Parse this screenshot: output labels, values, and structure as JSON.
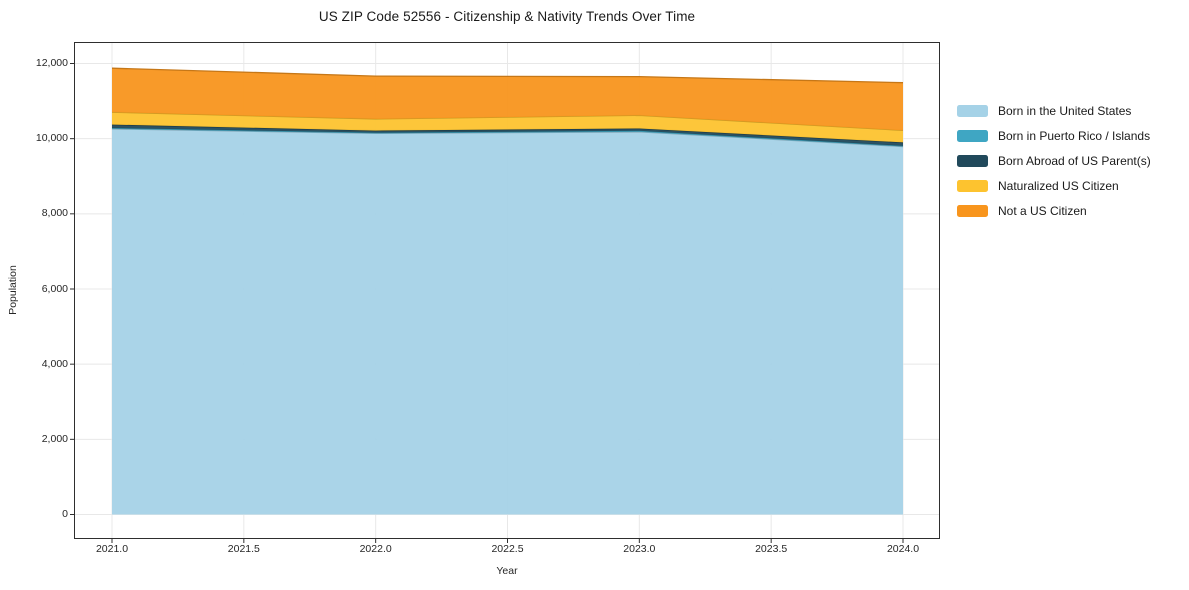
{
  "page": {
    "background": "#ffffff"
  },
  "colors": {
    "grid": "#e8e8e8",
    "spine": "#2e2e2e",
    "text": "#262626"
  },
  "chart_data": {
    "type": "area",
    "stacked": true,
    "title": "US ZIP Code 52556 - Citizenship & Nativity Trends Over Time",
    "xlabel": "Year",
    "ylabel": "Population",
    "grid": true,
    "legend_position": "right",
    "x": [
      2021,
      2022,
      2023,
      2024
    ],
    "xlim": [
      2021,
      2024
    ],
    "ylim": [
      0,
      12000
    ],
    "x_tick_values": [
      2021.0,
      2021.5,
      2022.0,
      2022.5,
      2023.0,
      2023.5,
      2024.0
    ],
    "x_tick_labels": [
      "2021.0",
      "2021.5",
      "2022.0",
      "2022.5",
      "2023.0",
      "2023.5",
      "2024.0"
    ],
    "y_tick_values": [
      0,
      2000,
      4000,
      6000,
      8000,
      10000,
      12000
    ],
    "y_tick_labels": [
      "0",
      "2,000",
      "4,000",
      "6,000",
      "8,000",
      "10,000",
      "12,000"
    ],
    "series": [
      {
        "name": "Born in the United States",
        "color": "#a5d2e7",
        "values": [
          10260,
          10140,
          10180,
          9790
        ]
      },
      {
        "name": "Born in Puerto Rico / Islands",
        "color": "#3fa6c3",
        "values": [
          25,
          20,
          30,
          20
        ]
      },
      {
        "name": "Born Abroad of US Parent(s)",
        "color": "#21495b",
        "values": [
          90,
          55,
          60,
          90
        ]
      },
      {
        "name": "Naturalized US Citizen",
        "color": "#fdc32f",
        "values": [
          330,
          310,
          350,
          320
        ]
      },
      {
        "name": "Not a US Citizen",
        "color": "#f8951d",
        "values": [
          1170,
          1140,
          1030,
          1270
        ]
      }
    ],
    "stacked_totals": [
      11875,
      11665,
      11650,
      11490
    ]
  }
}
